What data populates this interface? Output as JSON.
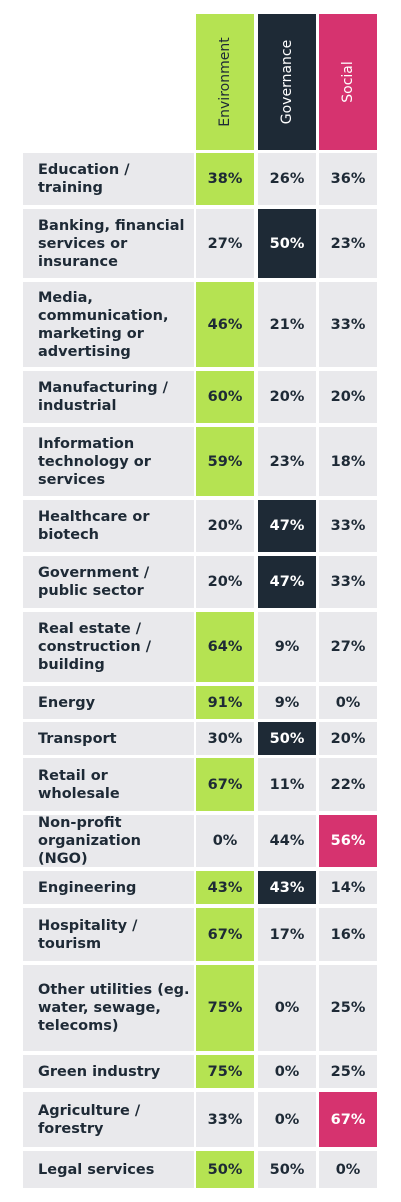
{
  "chart_data": {
    "type": "table",
    "columns": [
      "Environment",
      "Governance",
      "Social"
    ],
    "column_colors": [
      "#b5e352",
      "#1e2a36",
      "#d6336f"
    ],
    "rows": [
      {
        "label": "Education / training",
        "values": [
          "38%",
          "26%",
          "36%"
        ],
        "highlight": 0
      },
      {
        "label": "Banking, financial services or insurance",
        "values": [
          "27%",
          "50%",
          "23%"
        ],
        "highlight": 1
      },
      {
        "label": "Media, communication, marketing or advertising",
        "values": [
          "46%",
          "21%",
          "33%"
        ],
        "highlight": 0
      },
      {
        "label": "Manufacturing / industrial",
        "values": [
          "60%",
          "20%",
          "20%"
        ],
        "highlight": 0
      },
      {
        "label": "Information technology or services",
        "values": [
          "59%",
          "23%",
          "18%"
        ],
        "highlight": 0
      },
      {
        "label": "Healthcare or biotech",
        "values": [
          "20%",
          "47%",
          "33%"
        ],
        "highlight": 1
      },
      {
        "label": "Government / public sector",
        "values": [
          "20%",
          "47%",
          "33%"
        ],
        "highlight": 1
      },
      {
        "label": "Real estate / construction / building",
        "values": [
          "64%",
          "9%",
          "27%"
        ],
        "highlight": 0
      },
      {
        "label": "Energy",
        "values": [
          "91%",
          "9%",
          "0%"
        ],
        "highlight": 0
      },
      {
        "label": "Transport",
        "values": [
          "30%",
          "50%",
          "20%"
        ],
        "highlight": 1
      },
      {
        "label": "Retail or wholesale",
        "values": [
          "67%",
          "11%",
          "22%"
        ],
        "highlight": 0
      },
      {
        "label": "Non-profit organization (NGO)",
        "values": [
          "0%",
          "44%",
          "56%"
        ],
        "highlight": 2
      },
      {
        "label": "Engineering",
        "values": [
          "43%",
          "43%",
          "14%"
        ],
        "highlight": [
          0,
          1
        ]
      },
      {
        "label": "Hospitality / tourism",
        "values": [
          "67%",
          "17%",
          "16%"
        ],
        "highlight": 0
      },
      {
        "label": "Other utilities (eg. water, sewage, telecoms)",
        "values": [
          "75%",
          "0%",
          "25%"
        ],
        "highlight": 0
      },
      {
        "label": "Green industry",
        "values": [
          "75%",
          "0%",
          "25%"
        ],
        "highlight": 0
      },
      {
        "label": "Agriculture / forestry",
        "values": [
          "33%",
          "0%",
          "67%"
        ],
        "highlight": 2
      },
      {
        "label": "Legal services",
        "values": [
          "50%",
          "50%",
          "0%"
        ],
        "highlight": 0
      }
    ]
  }
}
